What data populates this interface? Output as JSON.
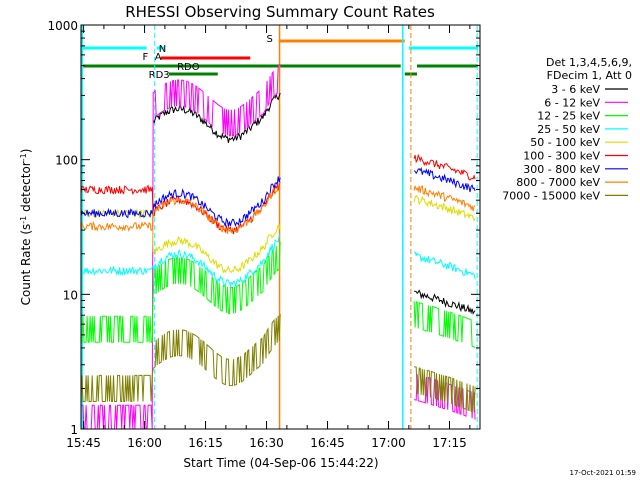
{
  "chart_data": {
    "type": "line",
    "title": "RHESSI Observing Summary Count Rates",
    "xlabel": "Start Time (04-Sep-06 15:44:22)",
    "ylabel_main": "Count Rate (s",
    "ylabel_sup1": "-1",
    "ylabel_mid": " detector",
    "ylabel_sup2": "-1",
    "ylabel_end": ")",
    "yscale": "log",
    "ylim": [
      1,
      1000
    ],
    "xlim": [
      "15:44:22",
      "17:22:30"
    ],
    "x_ticks": [
      "15:45",
      "16:00",
      "16:15",
      "16:30",
      "16:45",
      "17:00",
      "17:15"
    ],
    "y_ticks": [
      "1",
      "10",
      "100",
      "1000"
    ],
    "legend_header": [
      "Det 1,3,4,5,6,9,",
      "FDecim 1, Att 0"
    ],
    "series": [
      {
        "name": "3 - 6 keV",
        "color": "#000000",
        "values": {
          "pre": null,
          "peak": 320,
          "flare": 190,
          "post": 8
        }
      },
      {
        "name": "6 - 12 keV",
        "color": "#ff00ff",
        "values": {
          "pre": 1.2,
          "peak": 450,
          "flare": 250,
          "post": 1.6
        }
      },
      {
        "name": "12 - 25 keV",
        "color": "#00ff00",
        "values": {
          "pre": 5.5,
          "peak": 10,
          "flare": 12,
          "post": 5.5
        }
      },
      {
        "name": "25 - 50 keV",
        "color": "#00ffff",
        "values": {
          "pre": 15,
          "peak": 28,
          "flare": 16,
          "post": 15
        }
      },
      {
        "name": "50 - 100 keV",
        "color": "#dddd00",
        "values": {
          "pre": 40,
          "peak": 26,
          "flare": 20,
          "post": 40
        }
      },
      {
        "name": "100 - 300 keV",
        "color": "#ff0000",
        "values": {
          "pre": 60,
          "peak": 45,
          "flare": 40,
          "post": 80
        }
      },
      {
        "name": "300 - 800 keV",
        "color": "#0000ff",
        "values": {
          "pre": 40,
          "peak": 55,
          "flare": 45,
          "post": 65
        }
      },
      {
        "name": "800 - 7000 keV",
        "color": "#ff8000",
        "values": {
          "pre": 32,
          "peak": 50,
          "flare": 40,
          "post": 48
        }
      },
      {
        "name": "7000 - 15000 keV",
        "color": "#808000",
        "values": {
          "pre": 2,
          "peak": 4,
          "flare": 3.5,
          "post": 1.8
        }
      }
    ],
    "flags": [
      {
        "label": "N",
        "color": "#00ffff"
      },
      {
        "label": "F",
        "color": "#ff0000"
      },
      {
        "label": "A",
        "color": "#ff0000"
      },
      {
        "label": "S",
        "color": "#ff8000"
      },
      {
        "label": "RDO",
        "color": "#008000"
      },
      {
        "label": "RD3",
        "color": "#008000"
      }
    ],
    "timestamp": "17-Oct-2021 01:59"
  }
}
